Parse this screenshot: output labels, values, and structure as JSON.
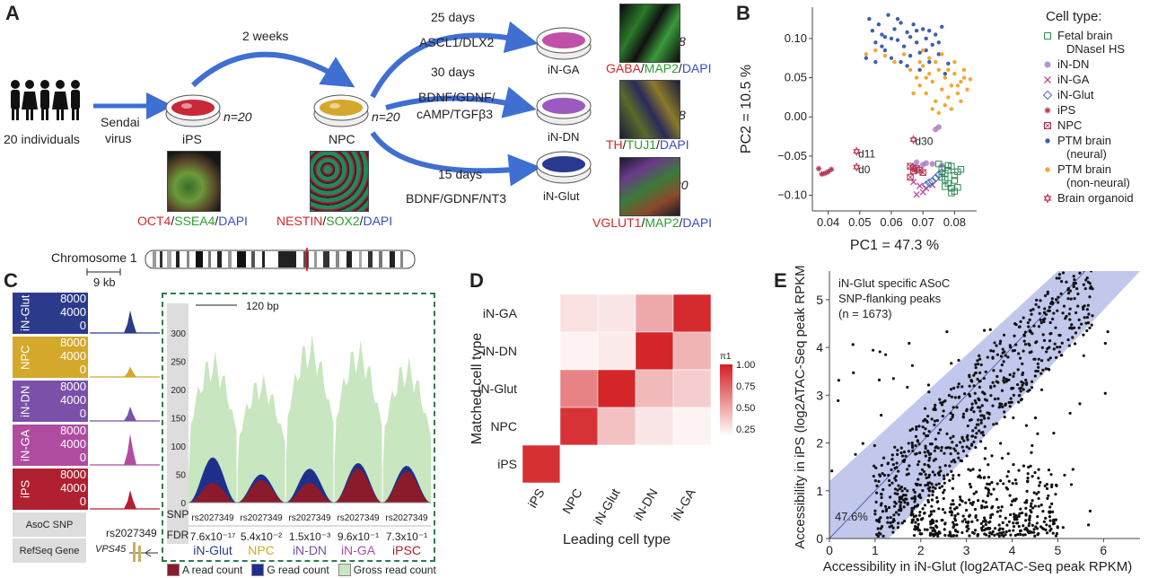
{
  "panelA": {
    "label": "A",
    "individuals": "20 individuals",
    "sendai": [
      "Sendai",
      "virus"
    ],
    "ips_label": "iPS",
    "ips_n": "n=20",
    "npc_label": "NPC",
    "npc_n": "n=20",
    "two_weeks": "2 weeks",
    "arrows": [
      {
        "days": "25 days",
        "factors": [
          "ASCL1/DLX2"
        ],
        "target": "iN-GA",
        "n": "n=8"
      },
      {
        "days": "30 days",
        "factors": [
          "BDNF/GDNF/",
          "cAMP/TGFβ3"
        ],
        "target": "iN-DN",
        "n": "n=8"
      },
      {
        "days": "15 days",
        "factors": [
          "BDNF/GDNF/NT3"
        ],
        "target": "iN-Glut",
        "n": "n=20"
      }
    ],
    "stains": {
      "ips": [
        {
          "t": "OCT4",
          "c": "#d62728"
        },
        {
          "t": "/",
          "c": "#222"
        },
        {
          "t": "SSEA4",
          "c": "#2ca02c"
        },
        {
          "t": "/",
          "c": "#222"
        },
        {
          "t": "DAPI",
          "c": "#3b4cc0"
        }
      ],
      "npc": [
        {
          "t": "NESTIN",
          "c": "#d62728"
        },
        {
          "t": "/",
          "c": "#222"
        },
        {
          "t": "SOX2",
          "c": "#2ca02c"
        },
        {
          "t": "/",
          "c": "#222"
        },
        {
          "t": "DAPI",
          "c": "#3b4cc0"
        }
      ],
      "ga": [
        {
          "t": "GABA",
          "c": "#d62728"
        },
        {
          "t": "/",
          "c": "#222"
        },
        {
          "t": "MAP2",
          "c": "#2ca02c"
        },
        {
          "t": "/",
          "c": "#222"
        },
        {
          "t": "DAPI",
          "c": "#3b4cc0"
        }
      ],
      "dn": [
        {
          "t": "TH",
          "c": "#d62728"
        },
        {
          "t": "/",
          "c": "#222"
        },
        {
          "t": "TUJ1",
          "c": "#2ca02c"
        },
        {
          "t": "/",
          "c": "#222"
        },
        {
          "t": "DAPI",
          "c": "#3b4cc0"
        }
      ],
      "glut": [
        {
          "t": "VGLUT1",
          "c": "#d62728"
        },
        {
          "t": "/",
          "c": "#222"
        },
        {
          "t": "MAP2",
          "c": "#2ca02c"
        },
        {
          "t": "/",
          "c": "#222"
        },
        {
          "t": "DAPI",
          "c": "#3b4cc0"
        }
      ]
    }
  },
  "panelB": {
    "label": "B",
    "legend_title": "Cell type:",
    "legend": [
      {
        "name": [
          "Fetal brain",
          "DNaseI HS"
        ],
        "color": "#2e8b57",
        "shape": "square"
      },
      {
        "name": [
          "iN-DN"
        ],
        "color": "#a678c8",
        "shape": "circle"
      },
      {
        "name": [
          "iN-GA"
        ],
        "color": "#c44a9a",
        "shape": "x"
      },
      {
        "name": [
          "iN-Glut"
        ],
        "color": "#4a68b5",
        "shape": "diamond"
      },
      {
        "name": [
          "iPS"
        ],
        "color": "#b33a5a",
        "shape": "star"
      },
      {
        "name": [
          "NPC"
        ],
        "color": "#b03050",
        "shape": "sqx"
      },
      {
        "name": [
          "PTM brain",
          "(neural)"
        ],
        "color": "#3f5fb0",
        "shape": "dot"
      },
      {
        "name": [
          "PTM brain",
          "(non-neural)"
        ],
        "color": "#f0a830",
        "shape": "dot"
      },
      {
        "name": [
          "Brain organoid"
        ],
        "color": "#c43a5a",
        "shape": "hexstar"
      }
    ],
    "annotations": [
      "d11",
      "d0",
      "d30"
    ]
  },
  "panelC": {
    "label": "C",
    "chromosome": "Chromosome 1",
    "scale": "9 kb",
    "zoom_scale": "120 bp",
    "tracks": [
      {
        "name": "iN-Glut",
        "color": "#2c3a8c"
      },
      {
        "name": "NPC",
        "color": "#d4a82a"
      },
      {
        "name": "iN-DN",
        "color": "#7a50a8"
      },
      {
        "name": "iN-GA",
        "color": "#b04ca0"
      },
      {
        "name": "iPS",
        "color": "#b02030"
      }
    ],
    "track_ticks": [
      "8000",
      "4000",
      "0"
    ],
    "asoc_label": "AsoC SNP",
    "refseq_label": "RefSeq Gene",
    "snp_id": "rs2027349",
    "gene": "VPS45",
    "snp_row": "SNP",
    "fdr_row": "FDR",
    "zoom_ticks": [
      "300",
      "250",
      "200",
      "150",
      "100",
      "50",
      "0"
    ],
    "columns": [
      {
        "snp": "rs2027349",
        "fdr": "7.6x10⁻¹⁷",
        "cell": "iN-Glut",
        "color": "#2c3a8c"
      },
      {
        "snp": "rs2027349",
        "fdr": "5.4x10⁻²",
        "cell": "NPC",
        "color": "#d4a82a"
      },
      {
        "snp": "rs2027349",
        "fdr": "1.5x10⁻³",
        "cell": "iN-DN",
        "color": "#7a50a8"
      },
      {
        "snp": "rs2027349",
        "fdr": "9.6x10⁻¹",
        "cell": "iN-GA",
        "color": "#b04ca0"
      },
      {
        "snp": "rs2027349",
        "fdr": "7.3x10⁻¹",
        "cell": "iPSC",
        "color": "#b02030"
      }
    ],
    "legend": [
      {
        "name": "A read count",
        "color": "#8b1a2b"
      },
      {
        "name": "G read count",
        "color": "#1f2f8c"
      },
      {
        "name": "Gross read count",
        "color": "#c8e6c0"
      }
    ]
  },
  "panelD": {
    "label": "D",
    "xlabel": "Leading cell type",
    "ylabel": "Matched cell type",
    "xcats": [
      "iPS",
      "NPC",
      "iN-Glut",
      "iN-DN",
      "iN-GA"
    ],
    "ycats": [
      "iN-GA",
      "iN-DN",
      "iN-Glut",
      "NPC",
      "iPS"
    ],
    "legend_title": "π1",
    "legend_ticks": [
      "1.00",
      "0.75",
      "0.50",
      "0.25"
    ]
  },
  "panelE": {
    "label": "E",
    "title_lines": [
      "iN-Glut specific ASoC",
      "SNP-flanking peaks"
    ],
    "n_text": "(n = 1673)",
    "band_pct": "47.6%",
    "xlabel": "Accessibility in iN-Glut (log2ATAC-Seq peak RPKM)",
    "ylabel": "Accessibility in iPS (log2ATAC-Seq peak RPKM)",
    "xticks": [
      "0",
      "1",
      "2",
      "3",
      "4",
      "5",
      "6"
    ],
    "yticks": [
      "0",
      "1",
      "2",
      "3",
      "4",
      "5"
    ]
  },
  "chart_data": [
    {
      "type": "scatter",
      "panel": "B",
      "xlabel": "PC1 = 47.3 %",
      "ylabel": "PC2 = 10.5 %",
      "xlim": [
        0.035,
        0.087
      ],
      "ylim": [
        -0.12,
        0.14
      ],
      "xticks": [
        "0.04",
        "0.05",
        "0.06",
        "0.07",
        "0.08"
      ],
      "yticks": [
        "0.10",
        "0.05",
        "0.00",
        "−0.05",
        "−0.10"
      ],
      "series": [
        {
          "name": "iPS",
          "points": [
            [
              0.037,
              -0.066
            ],
            [
              0.039,
              -0.072
            ],
            [
              0.04,
              -0.07
            ],
            [
              0.038,
              -0.073
            ],
            [
              0.041,
              -0.067
            ]
          ]
        },
        {
          "name": "Brain organoid",
          "points": [
            [
              0.049,
              -0.044
            ],
            [
              0.049,
              -0.064
            ],
            [
              0.067,
              -0.029
            ]
          ]
        },
        {
          "name": "NPC",
          "points": [
            [
              0.066,
              -0.063
            ],
            [
              0.067,
              -0.065
            ],
            [
              0.068,
              -0.066
            ],
            [
              0.067,
              -0.069
            ],
            [
              0.069,
              -0.068
            ],
            [
              0.07,
              -0.071
            ],
            [
              0.066,
              -0.077
            ]
          ]
        },
        {
          "name": "iN-GA",
          "points": [
            [
              0.067,
              -0.083
            ],
            [
              0.069,
              -0.088
            ],
            [
              0.07,
              -0.096
            ],
            [
              0.071,
              -0.091
            ],
            [
              0.068,
              -0.099
            ],
            [
              0.073,
              -0.087
            ]
          ]
        },
        {
          "name": "iN-Glut",
          "points": [
            [
              0.071,
              -0.087
            ],
            [
              0.073,
              -0.082
            ],
            [
              0.074,
              -0.078
            ],
            [
              0.075,
              -0.074
            ],
            [
              0.072,
              -0.084
            ],
            [
              0.076,
              -0.071
            ]
          ]
        },
        {
          "name": "iN-DN",
          "points": [
            [
              0.068,
              -0.058
            ],
            [
              0.07,
              -0.061
            ],
            [
              0.073,
              -0.06
            ],
            [
              0.074,
              -0.016
            ],
            [
              0.075,
              -0.013
            ],
            [
              0.076,
              -0.062
            ],
            [
              0.071,
              -0.059
            ]
          ]
        },
        {
          "name": "Fetal brain DNaseI HS",
          "points": [
            [
              0.075,
              -0.06
            ],
            [
              0.076,
              -0.066
            ],
            [
              0.077,
              -0.072
            ],
            [
              0.078,
              -0.068
            ],
            [
              0.079,
              -0.063
            ],
            [
              0.08,
              -0.075
            ],
            [
              0.077,
              -0.08
            ],
            [
              0.078,
              -0.085
            ],
            [
              0.079,
              -0.091
            ],
            [
              0.08,
              -0.081
            ],
            [
              0.081,
              -0.07
            ],
            [
              0.082,
              -0.067
            ],
            [
              0.079,
              -0.097
            ],
            [
              0.077,
              -0.089
            ],
            [
              0.076,
              -0.077
            ],
            [
              0.081,
              -0.09
            ],
            [
              0.078,
              -0.062
            ],
            [
              0.08,
              -0.095
            ]
          ]
        },
        {
          "name": "PTM brain (neural)",
          "points": [
            [
              0.053,
              0.125
            ],
            [
              0.054,
              0.11
            ],
            [
              0.055,
              0.095
            ],
            [
              0.056,
              0.118
            ],
            [
              0.057,
              0.105
            ],
            [
              0.058,
              0.085
            ],
            [
              0.059,
              0.13
            ],
            [
              0.06,
              0.075
            ],
            [
              0.061,
              0.112
            ],
            [
              0.062,
              0.098
            ],
            [
              0.063,
              0.12
            ],
            [
              0.064,
              0.09
            ],
            [
              0.065,
              0.108
            ],
            [
              0.066,
              0.078
            ],
            [
              0.067,
              0.118
            ],
            [
              0.068,
              0.095
            ],
            [
              0.069,
              0.082
            ],
            [
              0.07,
              0.112
            ],
            [
              0.071,
              0.1
            ],
            [
              0.072,
              0.07
            ],
            [
              0.073,
              0.092
            ],
            [
              0.074,
              0.105
            ],
            [
              0.075,
              0.08
            ],
            [
              0.076,
              0.115
            ],
            [
              0.077,
              0.055
            ],
            [
              0.078,
              0.068
            ],
            [
              0.057,
              0.09
            ],
            [
              0.06,
              0.1
            ],
            [
              0.063,
              0.07
            ],
            [
              0.066,
              0.102
            ],
            [
              0.069,
              0.06
            ],
            [
              0.072,
              0.11
            ],
            [
              0.075,
              0.095
            ],
            [
              0.052,
              0.075
            ],
            [
              0.055,
              0.07
            ],
            [
              0.058,
              0.102
            ],
            [
              0.062,
              0.125
            ],
            [
              0.065,
              0.065
            ],
            [
              0.068,
              0.11
            ],
            [
              0.071,
              0.085
            ]
          ]
        },
        {
          "name": "PTM brain (non-neural)",
          "points": [
            [
              0.052,
              0.08
            ],
            [
              0.055,
              0.085
            ],
            [
              0.058,
              0.078
            ],
            [
              0.061,
              0.07
            ],
            [
              0.064,
              0.08
            ],
            [
              0.066,
              0.06
            ],
            [
              0.067,
              0.03
            ],
            [
              0.068,
              0.05
            ],
            [
              0.069,
              0.04
            ],
            [
              0.07,
              0.065
            ],
            [
              0.071,
              0.03
            ],
            [
              0.072,
              0.055
            ],
            [
              0.073,
              0.045
            ],
            [
              0.074,
              0.02
            ],
            [
              0.075,
              0.06
            ],
            [
              0.076,
              0.035
            ],
            [
              0.077,
              0.05
            ],
            [
              0.078,
              0.025
            ],
            [
              0.079,
              0.04
            ],
            [
              0.08,
              0.055
            ],
            [
              0.081,
              0.03
            ],
            [
              0.082,
              0.045
            ],
            [
              0.083,
              0.06
            ],
            [
              0.084,
              0.035
            ],
            [
              0.07,
              0.085
            ],
            [
              0.072,
              0.075
            ],
            [
              0.074,
              0.07
            ],
            [
              0.076,
              0.08
            ],
            [
              0.078,
              0.06
            ],
            [
              0.08,
              0.07
            ],
            [
              0.082,
              0.02
            ],
            [
              0.073,
              0.01
            ],
            [
              0.075,
              0.005
            ],
            [
              0.077,
              0.015
            ],
            [
              0.079,
              0.01
            ],
            [
              0.081,
              0.04
            ],
            [
              0.069,
              0.07
            ],
            [
              0.071,
              0.05
            ],
            [
              0.083,
              0.05
            ],
            [
              0.085,
              0.048
            ]
          ]
        }
      ]
    },
    {
      "type": "heatmap",
      "panel": "D",
      "x": [
        "iPS",
        "NPC",
        "iN-Glut",
        "iN-DN",
        "iN-GA"
      ],
      "y": [
        "iN-GA",
        "iN-DN",
        "iN-Glut",
        "NPC",
        "iPS"
      ],
      "values": [
        [
          0.08,
          0.22,
          0.2,
          0.45,
          0.95
        ],
        [
          0.05,
          0.15,
          0.18,
          0.97,
          0.4
        ],
        [
          0.05,
          0.6,
          0.97,
          0.38,
          0.3
        ],
        [
          0.04,
          0.92,
          0.35,
          0.2,
          0.15
        ],
        [
          0.93,
          0.08,
          0.05,
          0.1,
          0.08
        ]
      ],
      "colorscale": {
        "min": 0.1,
        "max": 1.0,
        "low": "#ffffff",
        "high": "#d31f22"
      }
    },
    {
      "type": "scatter",
      "panel": "E",
      "xlim": [
        0,
        6.8
      ],
      "ylim": [
        0,
        5.6
      ],
      "n": 1673,
      "band_fraction": 0.476,
      "description_points": "dense cloud; upper band along diagonal plus lower cluster around x 2–5, y 0–2"
    }
  ]
}
